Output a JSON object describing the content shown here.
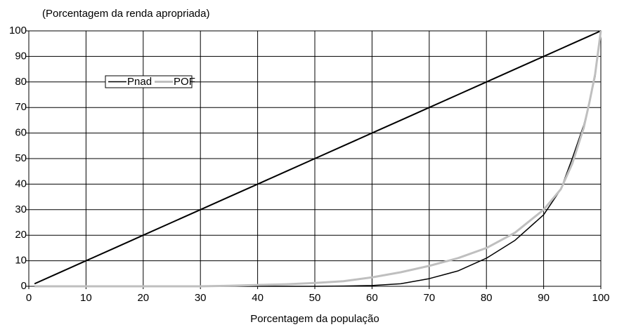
{
  "chart_data": {
    "type": "line",
    "title": "(Porcentagem da renda apropriada)",
    "x_label": "Porcentagem da população",
    "x": [
      1,
      5,
      10,
      15,
      20,
      25,
      30,
      35,
      40,
      45,
      50,
      55,
      60,
      65,
      70,
      75,
      80,
      85,
      90,
      93,
      95,
      97,
      98,
      99,
      100
    ],
    "series": [
      {
        "color": "#000000",
        "values": [
          1,
          5,
          10,
          15,
          20,
          25,
          30,
          35,
          40,
          45,
          50,
          55,
          60,
          65,
          70,
          75,
          80,
          85,
          90,
          93,
          95,
          97,
          98,
          99,
          100
        ]
      },
      {
        "name": "Pnad",
        "color": "#000000",
        "values": [
          0,
          0,
          0,
          0,
          0,
          0,
          0,
          0,
          0,
          0,
          0,
          0.1,
          0.3,
          1,
          3,
          6,
          11,
          18,
          28,
          38,
          50,
          63,
          72,
          82,
          100
        ]
      },
      {
        "name": "POF",
        "color": "#bfbfbf",
        "values": [
          0,
          0,
          0,
          0,
          0,
          0,
          0,
          0.2,
          0.5,
          0.8,
          1.3,
          2,
          3.5,
          5.5,
          8,
          11,
          15,
          21,
          30,
          38,
          48,
          62,
          72,
          83,
          100
        ]
      }
    ],
    "xlim": [
      0,
      100
    ],
    "ylim": [
      0,
      100
    ],
    "xticks": [
      0,
      10,
      20,
      30,
      40,
      50,
      60,
      70,
      80,
      90,
      100
    ],
    "yticks": [
      0,
      10,
      20,
      30,
      40,
      50,
      60,
      70,
      80,
      90,
      100
    ],
    "grid": true,
    "legend": "upper-left"
  }
}
